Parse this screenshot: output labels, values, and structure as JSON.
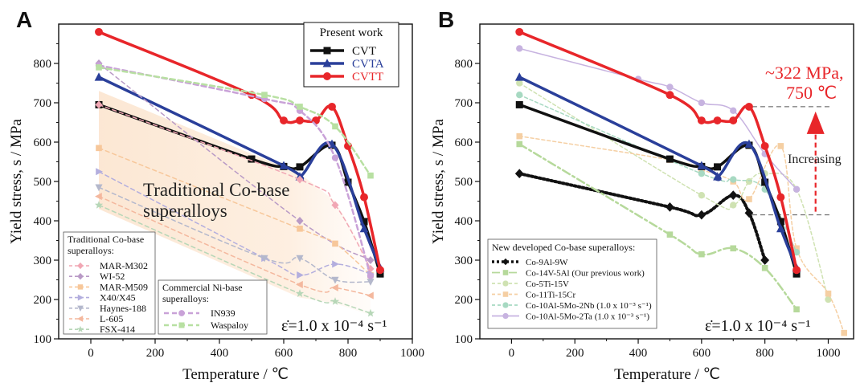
{
  "chart_data": [
    {
      "panel": "A",
      "type": "line",
      "xlabel": "Temperature / ℃",
      "ylabel": "Yield stress, s / MPa",
      "xlim": [
        -100,
        1000
      ],
      "ylim": [
        100,
        900
      ],
      "xticks": [
        "0",
        "200",
        "400",
        "600",
        "800",
        "1000"
      ],
      "yticks": [
        "100",
        "200",
        "300",
        "400",
        "500",
        "600",
        "700",
        "800"
      ],
      "rate_label": "ε̇=1.0 x 10⁻⁴ s⁻¹",
      "annotation": "Traditional Co-base superalloys",
      "legend_present": {
        "title": "Present work",
        "items": [
          {
            "name": "CVT",
            "color": "#111111",
            "marker": "square"
          },
          {
            "name": "CVTA",
            "color": "#2a3f9a",
            "marker": "triangle"
          },
          {
            "name": "CVTT",
            "color": "#e8262a",
            "marker": "circle"
          }
        ]
      },
      "legend_traditional": {
        "title": "Traditional Co-base superalloys:",
        "items": [
          {
            "name": "MAR-M302",
            "color": "#f1a7b4",
            "marker": "diamond"
          },
          {
            "name": "WI-52",
            "color": "#b99ac6",
            "marker": "diamond"
          },
          {
            "name": "MAR-M509",
            "color": "#f7c79a",
            "marker": "square"
          },
          {
            "name": "X40/X45",
            "color": "#b3aede",
            "marker": "triangle-right"
          },
          {
            "name": "Haynes-188",
            "color": "#b4b8cc",
            "marker": "triangle-down"
          },
          {
            "name": "L-605",
            "color": "#f4b89e",
            "marker": "triangle-left"
          },
          {
            "name": "FSX-414",
            "color": "#b7d7b8",
            "marker": "star"
          }
        ]
      },
      "legend_commercial": {
        "title": "Commercial Ni-base superalloys:",
        "items": [
          {
            "name": "IN939",
            "color": "#c9a2d8",
            "marker": "circle"
          },
          {
            "name": "Waspaloy",
            "color": "#b8e0a2",
            "marker": "square"
          }
        ]
      },
      "series": [
        {
          "name": "CVT",
          "color": "#111111",
          "width": 3.5,
          "marker": "square",
          "x": [
            25,
            500,
            600,
            650,
            750,
            800,
            850,
            900
          ],
          "y": [
            695,
            557,
            538,
            537,
            592,
            498,
            398,
            265
          ]
        },
        {
          "name": "CVTA",
          "color": "#2a3f9a",
          "width": 3.5,
          "marker": "triangle",
          "x": [
            25,
            600,
            650,
            750,
            850,
            900
          ],
          "y": [
            765,
            540,
            512,
            595,
            380,
            280
          ]
        },
        {
          "name": "CVTT",
          "color": "#e8262a",
          "width": 3.5,
          "marker": "circle",
          "x": [
            25,
            500,
            600,
            650,
            700,
            750,
            800,
            850,
            900
          ],
          "y": [
            880,
            720,
            655,
            655,
            655,
            690,
            590,
            460,
            275
          ]
        },
        {
          "name": "MAR-M302",
          "color": "#f1a7b4",
          "width": 1.5,
          "dash": "5 4",
          "marker": "diamond",
          "x": [
            25,
            650,
            760,
            870
          ],
          "y": [
            695,
            505,
            440,
            278
          ]
        },
        {
          "name": "WI-52",
          "color": "#b99ac6",
          "width": 1.5,
          "dash": "5 4",
          "marker": "diamond",
          "x": [
            25,
            650,
            870
          ],
          "y": [
            800,
            400,
            300
          ]
        },
        {
          "name": "MAR-M509",
          "color": "#f7c79a",
          "width": 1.5,
          "dash": "5 4",
          "marker": "square",
          "x": [
            25,
            650,
            760,
            870
          ],
          "y": [
            585,
            380,
            342,
            262
          ]
        },
        {
          "name": "X40/X45",
          "color": "#b3aede",
          "width": 1.5,
          "dash": "5 4",
          "marker": "triangle-right",
          "x": [
            25,
            540,
            650,
            760,
            870
          ],
          "y": [
            525,
            305,
            262,
            290,
            265
          ]
        },
        {
          "name": "Haynes-188",
          "color": "#b4b8cc",
          "width": 1.5,
          "dash": "5 4",
          "marker": "triangle-down",
          "x": [
            25,
            540,
            650,
            760,
            870
          ],
          "y": [
            485,
            305,
            305,
            250,
            245
          ]
        },
        {
          "name": "L-605",
          "color": "#f4b89e",
          "width": 1.5,
          "dash": "5 4",
          "marker": "triangle-left",
          "x": [
            25,
            650,
            760,
            870
          ],
          "y": [
            462,
            238,
            230,
            210
          ]
        },
        {
          "name": "FSX-414",
          "color": "#b7d7b8",
          "width": 1.5,
          "dash": "5 4",
          "marker": "star",
          "x": [
            25,
            650,
            760,
            870
          ],
          "y": [
            440,
            215,
            195,
            165
          ]
        },
        {
          "name": "IN939",
          "color": "#c9a2d8",
          "width": 2.5,
          "dash": "6 4",
          "marker": "circle",
          "x": [
            25,
            540,
            650,
            760,
            870
          ],
          "y": [
            795,
            710,
            680,
            560,
            260
          ]
        },
        {
          "name": "Waspaloy",
          "color": "#b8e0a2",
          "width": 2.5,
          "dash": "6 4",
          "marker": "square",
          "x": [
            25,
            540,
            650,
            760,
            870
          ],
          "y": [
            790,
            720,
            690,
            640,
            515
          ]
        }
      ]
    },
    {
      "panel": "B",
      "type": "line",
      "xlabel": "Temperature / ℃",
      "ylabel": "Yield stress, s / MPa",
      "xlim": [
        -100,
        1080
      ],
      "ylim": [
        100,
        900
      ],
      "xticks": [
        "0",
        "200",
        "400",
        "600",
        "800",
        "1000"
      ],
      "yticks": [
        "100",
        "200",
        "300",
        "400",
        "500",
        "600",
        "700",
        "800"
      ],
      "rate_label": "ε̇=1.0 x 10⁻⁴ s⁻¹",
      "annotation_main": "~322 MPa,",
      "annotation_temp": "750 ℃",
      "annotation_arrow": "Increasing",
      "reference_high": 690,
      "reference_low": 415,
      "legend_new": {
        "title": "New developed Co-base superalloys:",
        "items": [
          {
            "name": "Co-9Al-9W",
            "color": "#111111",
            "marker": "diamond",
            "dash": "3 3"
          },
          {
            "name": "Co-14V-5Al (Our previous work)",
            "color": "#b6d99b",
            "marker": "square",
            "dash": "10 4 3 4"
          },
          {
            "name": "Co-5Ti-15V",
            "color": "#cfe2b2",
            "marker": "circle",
            "dash": "4 3"
          },
          {
            "name": "Co-11Ti-15Cr",
            "color": "#f5cfa3",
            "marker": "square",
            "dash": "4 3"
          },
          {
            "name": "Co-10Al-5Mo-2Nb (1.0 x 10⁻³ s⁻¹)",
            "color": "#a7d9c2",
            "marker": "circle",
            "dash": "4 3"
          },
          {
            "name": "Co-10Al-5Mo-2Ta (1.0 x 10⁻³ s⁻¹)",
            "color": "#c7b3e0",
            "marker": "circle",
            "dash": ""
          }
        ]
      },
      "series": [
        {
          "name": "Co-9Al-9W",
          "color": "#111111",
          "width": 4,
          "dash": "2 3",
          "marker": "diamond",
          "x": [
            25,
            500,
            600,
            700,
            750,
            800
          ],
          "y": [
            520,
            435,
            415,
            465,
            420,
            300
          ]
        },
        {
          "name": "Co-14V-5Al (Our previous work)",
          "color": "#b6d99b",
          "width": 2.5,
          "dash": "10 4 3 4",
          "marker": "square",
          "x": [
            25,
            500,
            600,
            700,
            800,
            900
          ],
          "y": [
            595,
            365,
            315,
            330,
            280,
            175
          ]
        },
        {
          "name": "Co-5Ti-15V",
          "color": "#cfe2b2",
          "width": 1.5,
          "dash": "4 3",
          "marker": "circle",
          "x": [
            25,
            600,
            700,
            750,
            800,
            900,
            1000
          ],
          "y": [
            750,
            465,
            440,
            500,
            520,
            480,
            200
          ]
        },
        {
          "name": "Co-11Ti-15Cr",
          "color": "#f5cfa3",
          "width": 1.5,
          "dash": "4 3",
          "marker": "square",
          "x": [
            25,
            500,
            600,
            700,
            750,
            850,
            900,
            1000,
            1050
          ],
          "y": [
            615,
            555,
            530,
            500,
            455,
            590,
            330,
            215,
            115
          ]
        },
        {
          "name": "Co-10Al-5Mo-2Nb (1.0 x 10⁻³ s⁻¹)",
          "color": "#a7d9c2",
          "width": 1.5,
          "dash": "4 3",
          "marker": "circle",
          "x": [
            25,
            600,
            700,
            800,
            900
          ],
          "y": [
            720,
            520,
            505,
            480,
            320
          ]
        },
        {
          "name": "Co-10Al-5Mo-2Ta (1.0 x 10⁻³ s⁻¹)",
          "color": "#c7b3e0",
          "width": 1.5,
          "dash": "",
          "marker": "circle",
          "x": [
            25,
            400,
            500,
            600,
            700,
            800,
            900
          ],
          "y": [
            838,
            760,
            740,
            700,
            680,
            570,
            480
          ]
        },
        {
          "name": "CVT",
          "color": "#111111",
          "width": 3.5,
          "marker": "square",
          "x": [
            25,
            500,
            600,
            650,
            750,
            800,
            850,
            900
          ],
          "y": [
            695,
            557,
            538,
            537,
            592,
            498,
            398,
            265
          ]
        },
        {
          "name": "CVTA",
          "color": "#2a3f9a",
          "width": 3.5,
          "marker": "triangle",
          "x": [
            25,
            600,
            650,
            750,
            850,
            900
          ],
          "y": [
            765,
            540,
            512,
            595,
            380,
            280
          ]
        },
        {
          "name": "CVTT",
          "color": "#e8262a",
          "width": 3.5,
          "marker": "circle",
          "x": [
            25,
            500,
            600,
            650,
            700,
            750,
            800,
            850,
            900
          ],
          "y": [
            880,
            720,
            655,
            655,
            655,
            690,
            590,
            460,
            275
          ]
        }
      ]
    }
  ]
}
